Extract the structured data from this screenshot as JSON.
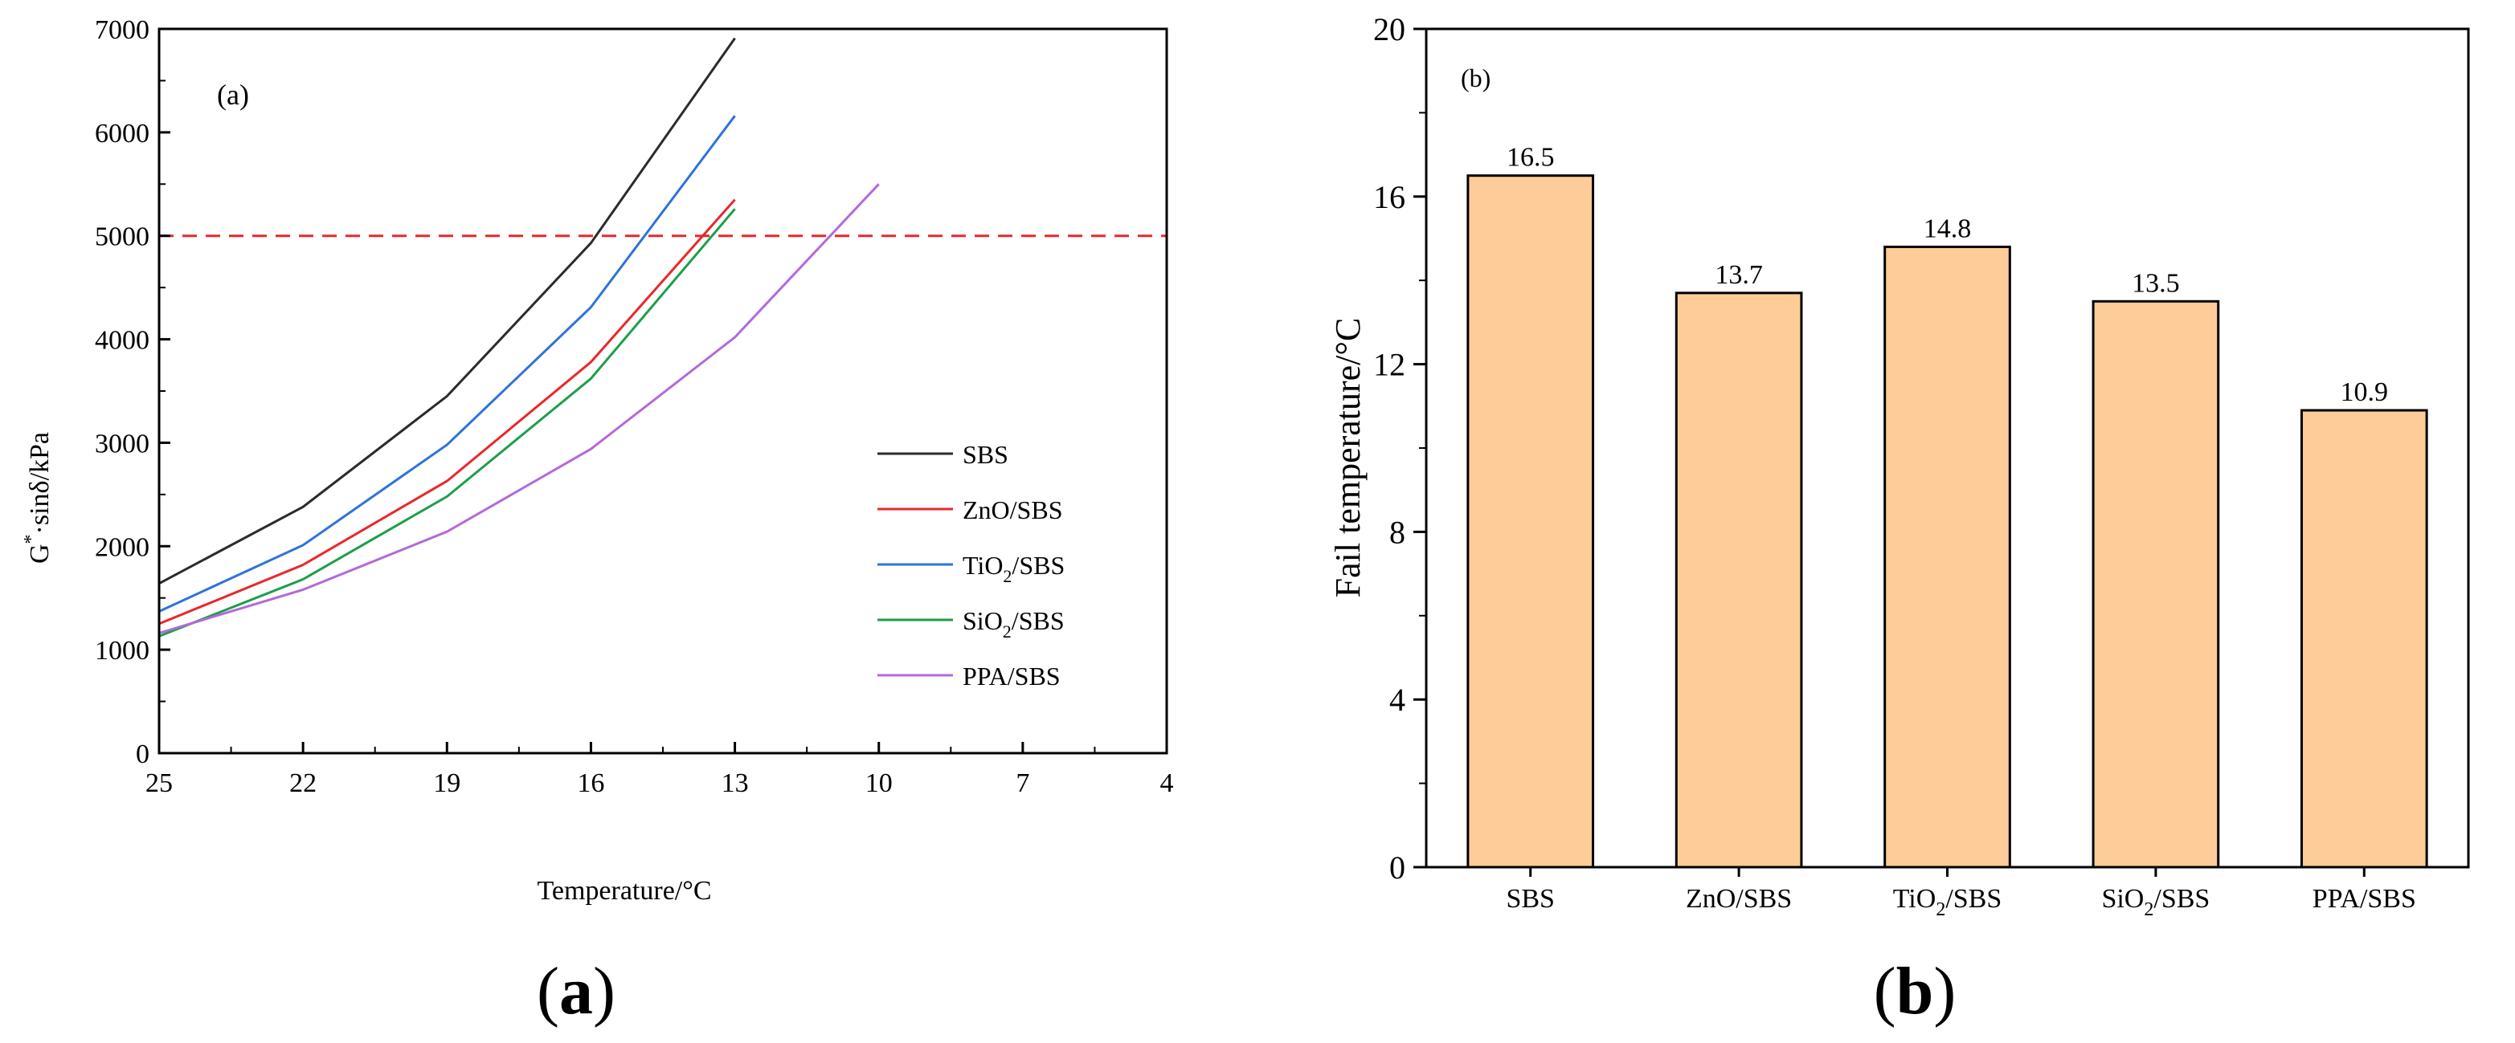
{
  "chart_data": [
    {
      "type": "line",
      "panel_label": "(a)",
      "caption_letter": "a",
      "xlabel": "Temperature/°C",
      "ylabel": "G·sinδ/kPa",
      "ylabel_main": "G",
      "ylabel_sup": "*",
      "ylabel_rest": "·sinδ/kPa",
      "xlim": [
        25,
        4
      ],
      "ylim": [
        0,
        7000
      ],
      "x_ticks": [
        25,
        22,
        19,
        16,
        13,
        10,
        7,
        4
      ],
      "y_ticks": [
        0,
        1000,
        2000,
        3000,
        4000,
        5000,
        6000,
        7000
      ],
      "reference_line": {
        "y": 5000,
        "style": "dashed",
        "color": "#e8282b"
      },
      "series": [
        {
          "name": "SBS",
          "name_main": "SBS",
          "name_sub": "",
          "name_tail": "",
          "color": "#2b2b2b",
          "x": [
            25,
            22,
            19,
            16,
            13
          ],
          "y": [
            1640,
            2380,
            3450,
            4930,
            6910
          ]
        },
        {
          "name": "ZnO/SBS",
          "name_main": "ZnO/SBS",
          "name_sub": "",
          "name_tail": "",
          "color": "#e8282b",
          "x": [
            25,
            22,
            19,
            16,
            13
          ],
          "y": [
            1250,
            1820,
            2630,
            3780,
            5350
          ]
        },
        {
          "name": "TiO2/SBS",
          "name_main": "TiO",
          "name_sub": "2",
          "name_tail": "/SBS",
          "color": "#2f73d8",
          "x": [
            25,
            22,
            19,
            16,
            13
          ],
          "y": [
            1370,
            2010,
            2980,
            4310,
            6160
          ]
        },
        {
          "name": "SiO2/SBS",
          "name_main": "SiO",
          "name_sub": "2",
          "name_tail": "/SBS",
          "color": "#1e9e4a",
          "x": [
            25,
            22,
            19,
            16,
            13
          ],
          "y": [
            1130,
            1680,
            2480,
            3620,
            5260
          ]
        },
        {
          "name": "PPA/SBS",
          "name_main": "PPA/SBS",
          "name_sub": "",
          "name_tail": "",
          "color": "#b26ad9",
          "x": [
            25,
            22,
            19,
            16,
            13,
            10
          ],
          "y": [
            1160,
            1580,
            2140,
            2940,
            4020,
            5500
          ]
        }
      ]
    },
    {
      "type": "bar",
      "panel_label": "(b)",
      "caption_letter": "b",
      "xlabel": "",
      "ylabel": "Fail temperature/°C",
      "ylim": [
        0,
        20
      ],
      "y_ticks": [
        0,
        4,
        8,
        12,
        16,
        20
      ],
      "bar_color": "#fdcc98",
      "bar_edge": "#000000",
      "categories": [
        "SBS",
        "ZnO/SBS",
        "TiO2/SBS",
        "SiO2/SBS",
        "PPA/SBS"
      ],
      "category_parts": [
        {
          "main": "SBS",
          "sub": "",
          "tail": ""
        },
        {
          "main": "ZnO/SBS",
          "sub": "",
          "tail": ""
        },
        {
          "main": "TiO",
          "sub": "2",
          "tail": "/SBS"
        },
        {
          "main": "SiO",
          "sub": "2",
          "tail": "/SBS"
        },
        {
          "main": "PPA/SBS",
          "sub": "",
          "tail": ""
        }
      ],
      "values": [
        16.5,
        13.7,
        14.8,
        13.5,
        10.9
      ],
      "value_labels": [
        "16.5",
        "13.7",
        "14.8",
        "13.5",
        "10.9"
      ]
    }
  ]
}
